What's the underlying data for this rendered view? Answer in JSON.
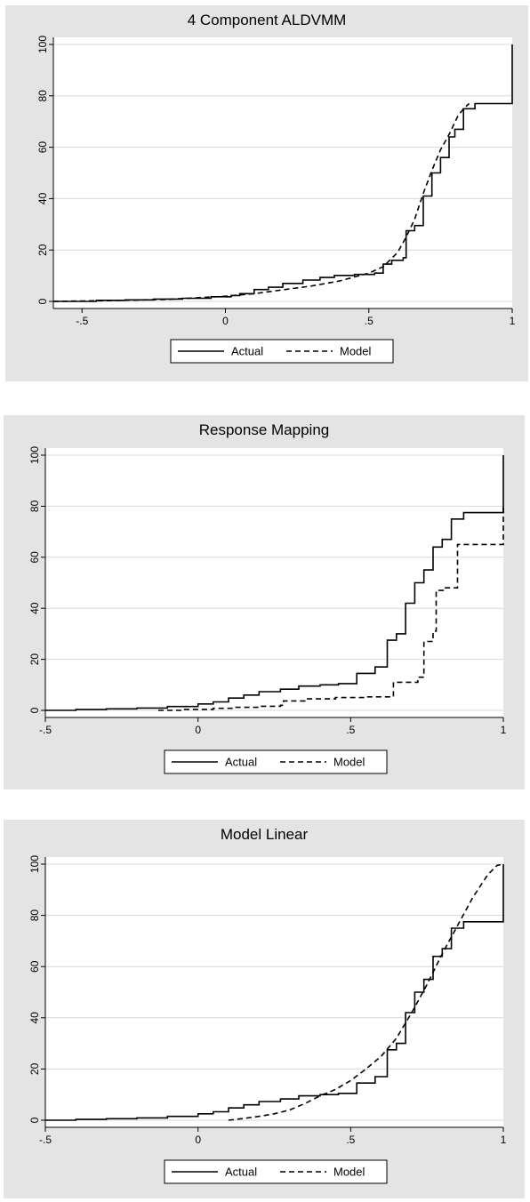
{
  "chart_data": [
    {
      "type": "line",
      "title": "4 Component ALDVMM",
      "xlabel": "",
      "ylabel": "",
      "xlim": [
        -0.6,
        1.0
      ],
      "ylim": [
        0,
        100
      ],
      "xticks": [
        -0.5,
        0,
        0.5,
        1
      ],
      "xtick_labels": [
        "-.5",
        "0",
        ".5",
        "1"
      ],
      "yticks": [
        0,
        20,
        40,
        60,
        80,
        100
      ],
      "ytick_labels": [
        "0",
        "20",
        "40",
        "60",
        "80",
        "100"
      ],
      "grid": "horizontal",
      "legend_position": "bottom",
      "series": [
        {
          "name": "Actual",
          "style": "solid",
          "step": true,
          "points": [
            [
              -0.6,
              0
            ],
            [
              -0.45,
              0.4
            ],
            [
              -0.35,
              0.6
            ],
            [
              -0.25,
              0.9
            ],
            [
              -0.15,
              1.2
            ],
            [
              -0.05,
              1.8
            ],
            [
              0.02,
              2.3
            ],
            [
              0.05,
              3
            ],
            [
              0.1,
              4.6
            ],
            [
              0.15,
              5.5
            ],
            [
              0.2,
              7
            ],
            [
              0.27,
              8.3
            ],
            [
              0.33,
              9.3
            ],
            [
              0.38,
              10.1
            ],
            [
              0.45,
              10.5
            ],
            [
              0.52,
              11
            ],
            [
              0.55,
              14.5
            ],
            [
              0.58,
              16
            ],
            [
              0.62,
              17
            ],
            [
              0.63,
              27.5
            ],
            [
              0.66,
              29.5
            ],
            [
              0.69,
              41
            ],
            [
              0.72,
              50
            ],
            [
              0.75,
              56
            ],
            [
              0.78,
              64
            ],
            [
              0.8,
              67
            ],
            [
              0.83,
              75
            ],
            [
              0.87,
              77
            ],
            [
              1.0,
              77
            ],
            [
              1.0,
              100
            ]
          ]
        },
        {
          "name": "Model",
          "style": "dashed",
          "step": false,
          "points": [
            [
              -0.6,
              0
            ],
            [
              -0.4,
              0.3
            ],
            [
              -0.2,
              0.8
            ],
            [
              0,
              2
            ],
            [
              0.1,
              3
            ],
            [
              0.2,
              4.5
            ],
            [
              0.3,
              6
            ],
            [
              0.4,
              8
            ],
            [
              0.45,
              9.5
            ],
            [
              0.5,
              11
            ],
            [
              0.55,
              13.5
            ],
            [
              0.6,
              19
            ],
            [
              0.63,
              25
            ],
            [
              0.66,
              32
            ],
            [
              0.69,
              42
            ],
            [
              0.72,
              51
            ],
            [
              0.75,
              59
            ],
            [
              0.78,
              65
            ],
            [
              0.81,
              72
            ],
            [
              0.83,
              75
            ],
            [
              0.85,
              77
            ]
          ]
        }
      ]
    },
    {
      "type": "line",
      "title": "Response Mapping",
      "xlabel": "",
      "ylabel": "",
      "xlim": [
        -0.5,
        1.0
      ],
      "ylim": [
        0,
        100
      ],
      "xticks": [
        -0.5,
        0,
        0.5,
        1
      ],
      "xtick_labels": [
        "-.5",
        "0",
        ".5",
        "1"
      ],
      "yticks": [
        0,
        20,
        40,
        60,
        80,
        100
      ],
      "ytick_labels": [
        "0",
        "20",
        "40",
        "60",
        "80",
        "100"
      ],
      "grid": "horizontal",
      "legend_position": "bottom",
      "series": [
        {
          "name": "Actual",
          "style": "solid",
          "step": true,
          "points": [
            [
              -0.5,
              0
            ],
            [
              -0.4,
              0.3
            ],
            [
              -0.3,
              0.6
            ],
            [
              -0.2,
              0.9
            ],
            [
              -0.1,
              1.5
            ],
            [
              0,
              2.5
            ],
            [
              0.05,
              3.3
            ],
            [
              0.1,
              4.8
            ],
            [
              0.15,
              6
            ],
            [
              0.2,
              7.3
            ],
            [
              0.27,
              8.3
            ],
            [
              0.33,
              9.5
            ],
            [
              0.4,
              10
            ],
            [
              0.46,
              10.5
            ],
            [
              0.52,
              11
            ],
            [
              0.52,
              14.5
            ],
            [
              0.58,
              17
            ],
            [
              0.62,
              27.5
            ],
            [
              0.65,
              30
            ],
            [
              0.68,
              42
            ],
            [
              0.71,
              50
            ],
            [
              0.74,
              55
            ],
            [
              0.77,
              64
            ],
            [
              0.8,
              67
            ],
            [
              0.83,
              75
            ],
            [
              0.87,
              77.5
            ],
            [
              1.0,
              77.5
            ],
            [
              1.0,
              100
            ]
          ]
        },
        {
          "name": "Model",
          "style": "dashed",
          "step": true,
          "points": [
            [
              -0.13,
              0
            ],
            [
              -0.05,
              0.4
            ],
            [
              0.05,
              0.8
            ],
            [
              0.12,
              1.2
            ],
            [
              0.2,
              1.6
            ],
            [
              0.27,
              2
            ],
            [
              0.28,
              3.7
            ],
            [
              0.35,
              4.5
            ],
            [
              0.45,
              5
            ],
            [
              0.55,
              5.3
            ],
            [
              0.64,
              5.8
            ],
            [
              0.64,
              11
            ],
            [
              0.72,
              13
            ],
            [
              0.74,
              27
            ],
            [
              0.77,
              31
            ],
            [
              0.78,
              47
            ],
            [
              0.81,
              48
            ],
            [
              0.85,
              65
            ],
            [
              1.0,
              65
            ],
            [
              1.0,
              80
            ]
          ]
        }
      ]
    },
    {
      "type": "line",
      "title": "Model Linear",
      "xlabel": "",
      "ylabel": "",
      "xlim": [
        -0.5,
        1.0
      ],
      "ylim": [
        0,
        100
      ],
      "xticks": [
        -0.5,
        0,
        0.5,
        1
      ],
      "xtick_labels": [
        "-.5",
        "0",
        ".5",
        "1"
      ],
      "yticks": [
        0,
        20,
        40,
        60,
        80,
        100
      ],
      "ytick_labels": [
        "0",
        "20",
        "40",
        "60",
        "80",
        "100"
      ],
      "grid": "horizontal",
      "legend_position": "bottom",
      "series": [
        {
          "name": "Actual",
          "style": "solid",
          "step": true,
          "points": [
            [
              -0.5,
              0
            ],
            [
              -0.4,
              0.3
            ],
            [
              -0.3,
              0.6
            ],
            [
              -0.2,
              0.9
            ],
            [
              -0.1,
              1.5
            ],
            [
              0,
              2.5
            ],
            [
              0.05,
              3.3
            ],
            [
              0.1,
              4.8
            ],
            [
              0.15,
              6
            ],
            [
              0.2,
              7.3
            ],
            [
              0.27,
              8.3
            ],
            [
              0.33,
              9.5
            ],
            [
              0.4,
              10
            ],
            [
              0.46,
              10.5
            ],
            [
              0.52,
              11
            ],
            [
              0.52,
              14.5
            ],
            [
              0.58,
              17
            ],
            [
              0.62,
              27.5
            ],
            [
              0.65,
              30
            ],
            [
              0.68,
              42
            ],
            [
              0.71,
              50
            ],
            [
              0.74,
              55
            ],
            [
              0.77,
              64
            ],
            [
              0.8,
              67
            ],
            [
              0.83,
              75
            ],
            [
              0.87,
              77.5
            ],
            [
              1.0,
              77.5
            ],
            [
              1.0,
              100
            ]
          ]
        },
        {
          "name": "Model",
          "style": "dashed",
          "step": false,
          "points": [
            [
              0.1,
              0
            ],
            [
              0.15,
              0.7
            ],
            [
              0.2,
              1.5
            ],
            [
              0.25,
              2.5
            ],
            [
              0.3,
              4
            ],
            [
              0.35,
              6.5
            ],
            [
              0.4,
              9.5
            ],
            [
              0.45,
              12
            ],
            [
              0.5,
              15.5
            ],
            [
              0.55,
              20
            ],
            [
              0.6,
              25
            ],
            [
              0.65,
              32
            ],
            [
              0.7,
              42
            ],
            [
              0.75,
              53
            ],
            [
              0.8,
              65
            ],
            [
              0.85,
              76
            ],
            [
              0.9,
              87
            ],
            [
              0.95,
              96
            ],
            [
              0.98,
              99.5
            ],
            [
              1.0,
              100
            ]
          ]
        }
      ]
    }
  ]
}
